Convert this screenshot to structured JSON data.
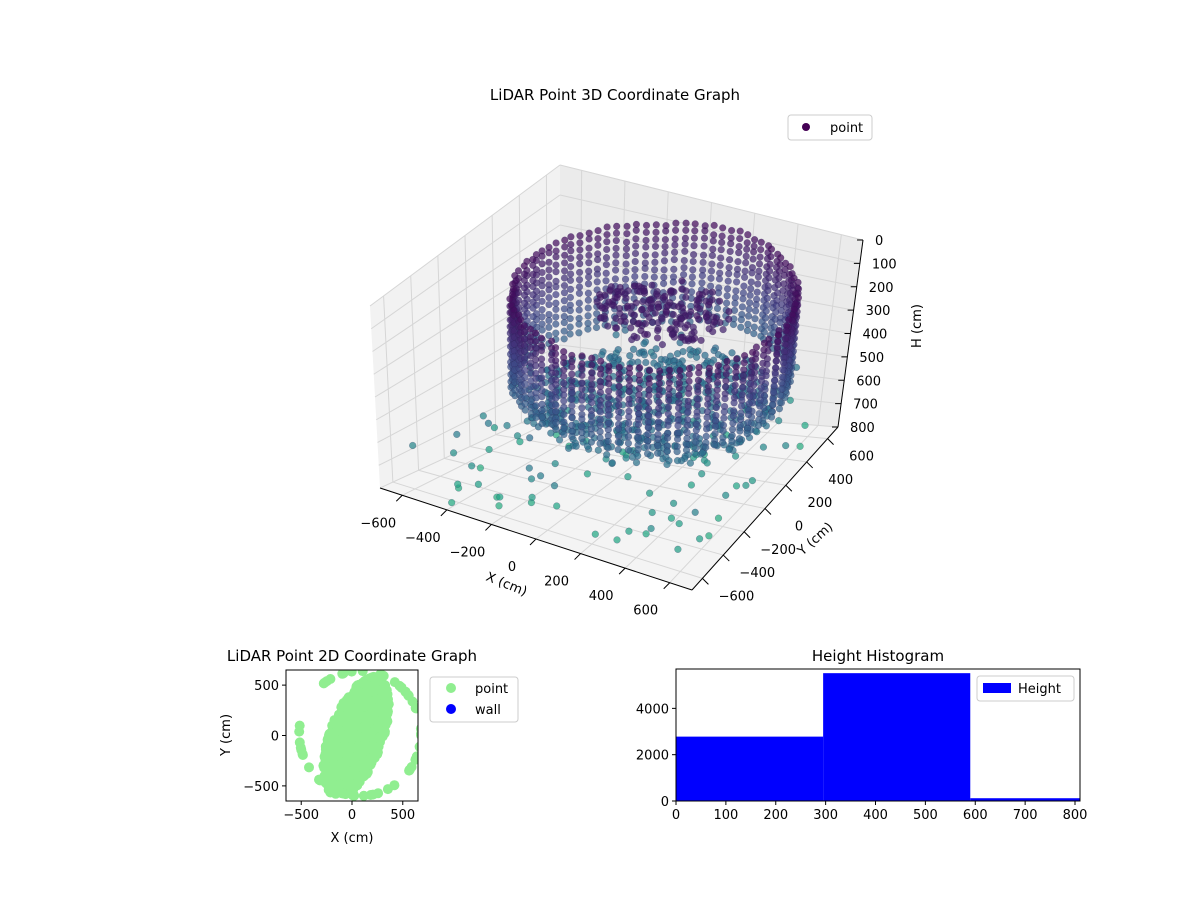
{
  "chart_data": [
    {
      "type": "scatter",
      "projection": "3d",
      "title": "LiDAR Point 3D Coordinate Graph",
      "xlabel": "X (cm)",
      "ylabel": "Y (cm)",
      "zlabel": "H (cm)",
      "xlim": [
        -700,
        700
      ],
      "ylim": [
        -700,
        700
      ],
      "zlim": [
        800,
        0
      ],
      "x_ticks": [
        -600,
        -400,
        -200,
        0,
        200,
        400,
        600
      ],
      "y_ticks": [
        -600,
        -400,
        -200,
        0,
        200,
        400,
        600
      ],
      "z_ticks": [
        0,
        100,
        200,
        300,
        400,
        500,
        600,
        700,
        800
      ],
      "z_inverted": true,
      "colormap": "viridis",
      "grid": true,
      "legend": {
        "position": "top-right",
        "entries": [
          {
            "name": "point",
            "color": "#440154"
          }
        ]
      },
      "series": [
        {
          "name": "point",
          "structures": [
            {
              "kind": "ring-wall",
              "radius": 560,
              "h_from": 30,
              "h_to": 420,
              "note": "cylindrical wall of points"
            },
            {
              "kind": "floor-disc",
              "radius": 520,
              "h": 480
            },
            {
              "kind": "ceiling-blob",
              "x": 120,
              "y": 80,
              "h": 100,
              "radius": 220
            },
            {
              "kind": "scattered-outliers",
              "count": 140,
              "h_range": [
                450,
                800
              ]
            }
          ]
        }
      ]
    },
    {
      "type": "scatter",
      "title": "LiDAR Point 2D Coordinate Graph",
      "xlabel": "X (cm)",
      "ylabel": "Y (cm)",
      "xlim": [
        -650,
        650
      ],
      "ylim": [
        -650,
        650
      ],
      "x_ticks": [
        -500,
        0,
        500
      ],
      "y_ticks": [
        -500,
        0,
        500
      ],
      "legend": {
        "position": "right",
        "entries": [
          {
            "name": "point",
            "color": "#90ee90"
          },
          {
            "name": "wall",
            "color": "#0000ff"
          }
        ]
      }
    },
    {
      "type": "bar",
      "subtype": "histogram",
      "title": "Height Histogram",
      "xlim": [
        0,
        810
      ],
      "ylim": [
        0,
        5700
      ],
      "x_ticks": [
        0,
        100,
        200,
        300,
        400,
        500,
        600,
        700,
        800
      ],
      "y_ticks": [
        0,
        2000,
        4000
      ],
      "color": "#0000ff",
      "bins": [
        {
          "from": 0,
          "to": 295,
          "value": 2780
        },
        {
          "from": 295,
          "to": 590,
          "value": 5520
        },
        {
          "from": 590,
          "to": 810,
          "value": 120
        }
      ],
      "legend": {
        "position": "top-right",
        "entries": [
          {
            "name": "Height",
            "color": "#0000ff"
          }
        ]
      }
    }
  ]
}
